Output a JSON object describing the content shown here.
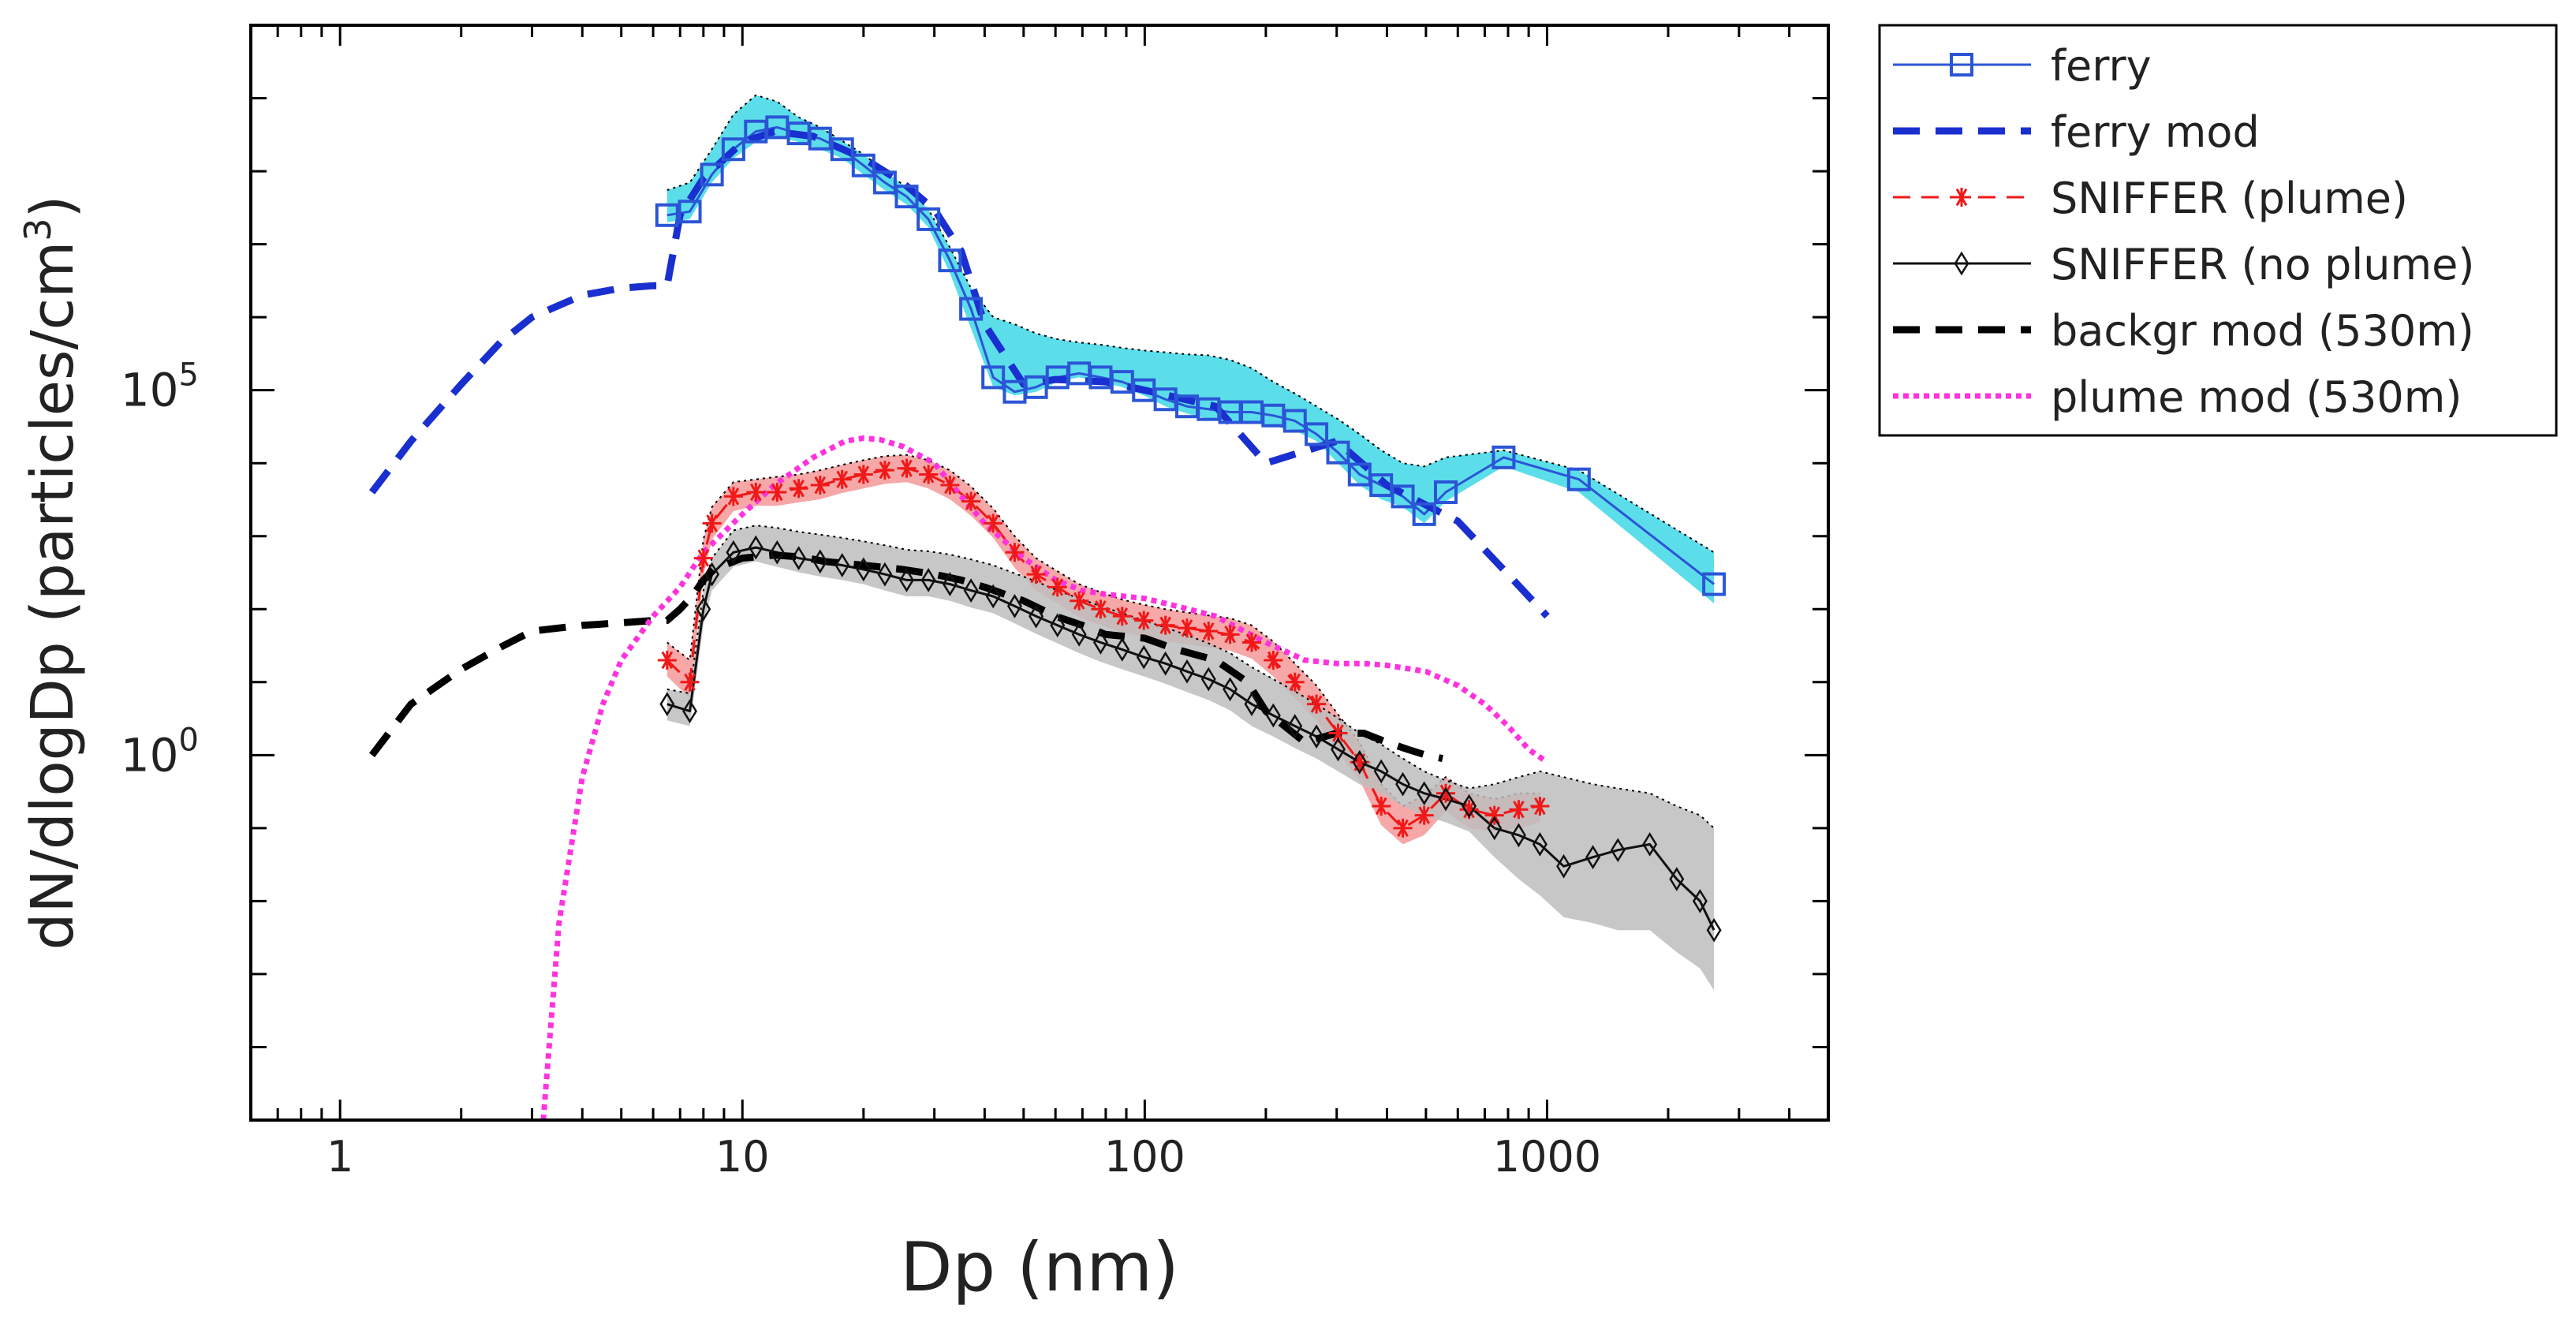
{
  "chart_data": {
    "type": "line",
    "title": "",
    "xlabel": "Dp (nm)",
    "ylabel_main": "dN/dlogDp (particles/cm",
    "ylabel_sup": "3",
    "ylabel_close": ")",
    "x_scale": "log",
    "y_scale": "log",
    "xlim": [
      0.6,
      5000
    ],
    "ylim": [
      1e-05,
      10000000000
    ],
    "x_ticks": [
      {
        "value": 1,
        "label": "1"
      },
      {
        "value": 10,
        "label": "10"
      },
      {
        "value": 100,
        "label": "100"
      },
      {
        "value": 1000,
        "label": "1000"
      }
    ],
    "y_ticks": [
      {
        "value": 1,
        "base": "10",
        "exp": "0"
      },
      {
        "value": 100000,
        "base": "10",
        "exp": "5"
      }
    ],
    "legend_position": "outside-right",
    "series": [
      {
        "name": "ferry",
        "color": "#2b55d6",
        "fill_color": "#3ed8e6",
        "marker": "square",
        "line": "solid",
        "x": [
          6.5,
          7.4,
          8.4,
          9.5,
          10.8,
          12.2,
          13.8,
          15.6,
          17.7,
          20,
          22.6,
          25.6,
          29,
          32.8,
          37,
          42,
          47.5,
          53.7,
          60.7,
          68.7,
          77.7,
          87.9,
          99.5,
          112.6,
          127.4,
          144.1,
          163,
          184.5,
          208.7,
          236.2,
          267.2,
          302.4,
          342.1,
          387.1,
          438,
          495,
          560,
          780,
          1200,
          2600
        ],
        "y": [
          25000000,
          28000000,
          90000000,
          200000000,
          350000000,
          400000000,
          330000000,
          280000000,
          200000000,
          120000000,
          70000000,
          45000000,
          22000000,
          6000000,
          1300000,
          150000,
          95000,
          110000,
          150000,
          170000,
          150000,
          130000,
          100000,
          75000,
          60000,
          55000,
          50000,
          50000,
          45000,
          38000,
          25000,
          14000,
          7000,
          5000,
          3500,
          2000,
          4000,
          12000,
          6000,
          220
        ],
        "band_upper": [
          55000000,
          70000000,
          200000000,
          600000000,
          1100000000,
          900000000,
          550000000,
          400000000,
          260000000,
          170000000,
          100000000,
          60000000,
          30000000,
          9000000,
          2500000,
          1000000,
          800000,
          600000,
          500000,
          450000,
          420000,
          380000,
          350000,
          330000,
          310000,
          300000,
          260000,
          200000,
          130000,
          90000,
          60000,
          40000,
          25000,
          15000,
          10000,
          9000,
          12000,
          15000,
          8000,
          600
        ],
        "band_lower": [
          20000000,
          22000000,
          70000000,
          150000000,
          250000000,
          300000000,
          250000000,
          200000000,
          150000000,
          90000000,
          55000000,
          35000000,
          17000000,
          4000000,
          700000,
          110000,
          85000,
          95000,
          130000,
          150000,
          130000,
          110000,
          85000,
          60000,
          48000,
          40000,
          38000,
          36000,
          32000,
          28000,
          20000,
          10000,
          5000,
          3200,
          2500,
          1500,
          3000,
          9000,
          4000,
          120
        ]
      },
      {
        "name": "ferry mod",
        "color": "#1a2fcf",
        "line": "dashed",
        "x": [
          1.2,
          1.5,
          2,
          2.5,
          3,
          4,
          5,
          6,
          6.5,
          7,
          8,
          10,
          12,
          15,
          20,
          25,
          30,
          35,
          40,
          50,
          60,
          80,
          100,
          150,
          200,
          300,
          400,
          600,
          800,
          1000
        ],
        "y": [
          4000,
          20000,
          120000,
          450000,
          1000000,
          2000000,
          2500000,
          2700000,
          2700000,
          25000000,
          80000000,
          250000000,
          350000000,
          300000000,
          150000000,
          70000000,
          30000000,
          8000000,
          800000,
          120000,
          140000,
          130000,
          100000,
          60000,
          10000,
          20000,
          5000,
          1600,
          300,
          80
        ]
      },
      {
        "name": "SNIFFER (plume)",
        "color": "#f01818",
        "fill_color": "#f59898",
        "marker": "star",
        "line": "dashed",
        "x": [
          6.5,
          7.4,
          8,
          8.4,
          9.5,
          10.8,
          12.2,
          13.8,
          15.6,
          17.7,
          20,
          22.6,
          25.6,
          29,
          32.8,
          37,
          42,
          47.5,
          53.7,
          60.7,
          68.7,
          77.7,
          87.9,
          99.5,
          112.6,
          127.4,
          144.1,
          163,
          184.5,
          208.7,
          236.2,
          267.2,
          302.4,
          342.1,
          387.1,
          438,
          495,
          560,
          640,
          740,
          850,
          960
        ],
        "y": [
          20,
          10,
          500,
          1500,
          3500,
          4000,
          4000,
          4500,
          5000,
          6000,
          7000,
          8000,
          8500,
          7000,
          5000,
          3000,
          1500,
          600,
          300,
          200,
          130,
          100,
          80,
          70,
          60,
          55,
          50,
          45,
          35,
          20,
          10,
          5,
          2,
          0.8,
          0.2,
          0.1,
          0.15,
          0.3,
          0.18,
          0.15,
          0.18,
          0.2
        ],
        "band_upper": [
          35,
          20,
          900,
          2500,
          5500,
          6000,
          6500,
          7000,
          8000,
          9500,
          11000,
          12500,
          13000,
          11000,
          8000,
          4800,
          2400,
          1000,
          500,
          330,
          220,
          170,
          135,
          115,
          100,
          90,
          82,
          75,
          60,
          36,
          18,
          9,
          3.6,
          1.5,
          0.4,
          0.2,
          0.28,
          0.5,
          0.3,
          0.25,
          0.3,
          0.3
        ],
        "band_lower": [
          12,
          6,
          280,
          900,
          2200,
          2600,
          2600,
          2900,
          3200,
          3900,
          4500,
          5200,
          5500,
          4500,
          3200,
          1900,
          950,
          370,
          180,
          120,
          78,
          60,
          48,
          42,
          36,
          33,
          30,
          27,
          21,
          12,
          6,
          3,
          1.1,
          0.45,
          0.11,
          0.06,
          0.08,
          0.17,
          0.1,
          0.09,
          0.1,
          0.12
        ]
      },
      {
        "name": "SNIFFER (no plume)",
        "color": "#111111",
        "fill_color": "#bdbdbd",
        "marker": "diamond",
        "line": "solid",
        "x": [
          6.5,
          7.4,
          8,
          8.4,
          9.5,
          10.8,
          12.2,
          13.8,
          15.6,
          17.7,
          20,
          22.6,
          25.6,
          29,
          32.8,
          37,
          42,
          47.5,
          53.7,
          60.7,
          68.7,
          77.7,
          87.9,
          99.5,
          112.6,
          127.4,
          144.1,
          163,
          184.5,
          208.7,
          236.2,
          267.2,
          302.4,
          342.1,
          387.1,
          438,
          495,
          560,
          640,
          740,
          850,
          960,
          1100,
          1300,
          1500,
          1800,
          2100,
          2400,
          2600
        ],
        "y": [
          5,
          4,
          100,
          300,
          600,
          700,
          600,
          500,
          450,
          400,
          350,
          300,
          250,
          250,
          220,
          180,
          150,
          110,
          80,
          60,
          45,
          35,
          28,
          22,
          18,
          14,
          11,
          8,
          5,
          3.5,
          2.5,
          1.8,
          1.2,
          0.8,
          0.6,
          0.4,
          0.3,
          0.25,
          0.2,
          0.1,
          0.08,
          0.06,
          0.03,
          0.04,
          0.05,
          0.06,
          0.02,
          0.01,
          0.004
        ],
        "band_upper": [
          8,
          7,
          180,
          500,
          1200,
          1400,
          1300,
          1150,
          1050,
          950,
          850,
          750,
          650,
          620,
          560,
          480,
          400,
          310,
          240,
          180,
          140,
          110,
          88,
          70,
          56,
          44,
          34,
          25,
          16,
          11,
          7.5,
          5,
          3.2,
          2,
          1.4,
          0.9,
          0.6,
          0.45,
          0.35,
          0.4,
          0.5,
          0.6,
          0.5,
          0.4,
          0.35,
          0.3,
          0.2,
          0.15,
          0.1
        ],
        "band_lower": [
          3,
          2.5,
          60,
          180,
          380,
          450,
          380,
          320,
          280,
          250,
          220,
          180,
          150,
          150,
          130,
          105,
          88,
          64,
          46,
          34,
          25,
          19,
          15,
          12,
          9.5,
          7.3,
          5.7,
          4.1,
          2.5,
          1.8,
          1.25,
          0.9,
          0.6,
          0.4,
          0.3,
          0.2,
          0.15,
          0.12,
          0.09,
          0.04,
          0.02,
          0.012,
          0.006,
          0.005,
          0.004,
          0.004,
          0.002,
          0.0012,
          0.0006
        ]
      },
      {
        "name": "backgr mod (530m)",
        "color": "#000000",
        "line": "dashed",
        "x": [
          1.2,
          1.5,
          2,
          2.5,
          3,
          4,
          5,
          6,
          6.5,
          7,
          7.5,
          8,
          8.5,
          9,
          10,
          12,
          14,
          16,
          20,
          25,
          30,
          35,
          40,
          50,
          60,
          70,
          80,
          100,
          120,
          150,
          180,
          200,
          250,
          300,
          350,
          400,
          450,
          500,
          550
        ],
        "y": [
          1,
          5,
          15,
          30,
          50,
          60,
          65,
          70,
          70,
          100,
          150,
          250,
          350,
          400,
          500,
          550,
          520,
          450,
          400,
          350,
          300,
          250,
          200,
          130,
          80,
          60,
          45,
          40,
          28,
          20,
          10,
          4,
          1.5,
          2,
          2,
          1.5,
          1.2,
          1,
          0.9
        ]
      },
      {
        "name": "plume mod (530m)",
        "color": "#ff33dd",
        "line": "dotted",
        "x": [
          3.2,
          3.5,
          4,
          4.5,
          5,
          6,
          7,
          8,
          10,
          12,
          15,
          18,
          20,
          22,
          25,
          30,
          35,
          40,
          50,
          60,
          70,
          80,
          100,
          120,
          150,
          200,
          250,
          300,
          350,
          400,
          500,
          600,
          700,
          800,
          900,
          1000
        ],
        "y": [
          1e-05,
          0.005,
          0.5,
          5,
          20,
          80,
          200,
          600,
          2000,
          5000,
          12000,
          20000,
          22000,
          21000,
          17000,
          10000,
          3500,
          1500,
          500,
          250,
          180,
          160,
          140,
          110,
          80,
          35,
          20,
          18,
          18,
          17,
          14,
          9,
          5,
          2.5,
          1.2,
          0.8
        ]
      }
    ]
  }
}
